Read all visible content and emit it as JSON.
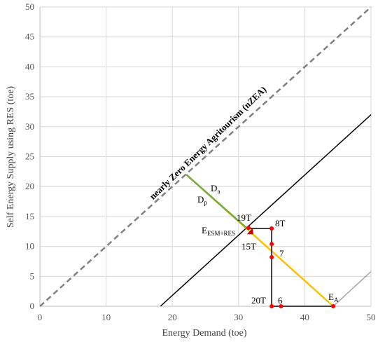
{
  "chart_data": {
    "type": "line",
    "xlabel": "Energy Demand (toe)",
    "ylabel": "Self Energy Supply using RES (toe)",
    "xlim": [
      0,
      50
    ],
    "ylim": [
      0,
      50
    ],
    "x_ticks": [
      "0",
      "10",
      "20",
      "30",
      "40",
      "50"
    ],
    "y_ticks": [
      "0",
      "5",
      "10",
      "15",
      "20",
      "25",
      "30",
      "35",
      "40",
      "45",
      "50"
    ],
    "grid": true,
    "diagonal_label": "nearly Zero Energy Agritourism (nZEA)",
    "series": [
      {
        "type": "dashed",
        "color": "#808080",
        "points": [
          [
            0,
            0
          ],
          [
            50,
            50
          ]
        ]
      },
      {
        "type": "solid",
        "color": "#000000",
        "points": [
          [
            18.2,
            0
          ],
          [
            50,
            32
          ]
        ]
      },
      {
        "type": "solid",
        "color": "#a6a6a6",
        "points": [
          [
            44.3,
            0
          ],
          [
            50,
            5.8
          ]
        ]
      },
      {
        "type": "solid",
        "color": "#ffc000",
        "points": [
          [
            22.1,
            22
          ],
          [
            44.3,
            0
          ]
        ]
      },
      {
        "type": "solid",
        "color": "#70ad47",
        "points": [
          [
            22.1,
            22
          ],
          [
            31.5,
            12.8
          ]
        ]
      },
      {
        "type": "solid",
        "color": "#000000",
        "points": [
          [
            35,
            0
          ],
          [
            35,
            13
          ],
          [
            31.5,
            13
          ]
        ]
      },
      {
        "type": "solid",
        "color": "#000000",
        "points": [
          [
            35,
            0
          ],
          [
            44.3,
            0
          ]
        ]
      }
    ],
    "points": [
      {
        "label": "19T",
        "x": 31.5,
        "y": 13.1,
        "color": "#ff0000"
      },
      {
        "label": "8T",
        "x": 35,
        "y": 13,
        "color": "#ff0000"
      },
      {
        "label": "15T",
        "x": 35,
        "y": 10.4,
        "color": "#ff0000"
      },
      {
        "label": "7",
        "x": 35,
        "y": 8.2,
        "color": "#ff0000"
      },
      {
        "label": "20T",
        "x": 35,
        "y": 0,
        "color": "#ff0000"
      },
      {
        "label": "6",
        "x": 36.4,
        "y": 0,
        "color": "#ff0000"
      },
      {
        "label": "E_A",
        "x": 44.3,
        "y": 0,
        "color": "#ff0000"
      }
    ],
    "annotations": {
      "da_main": "D",
      "da_sub": "a",
      "dp_main": "D",
      "dp_sub": "p",
      "e_esm_main": "E",
      "e_esm_sub": "ESM+RES",
      "ea_main": "E",
      "ea_sub": "A",
      "label_19t": "19T",
      "label_8t": "8T",
      "label_15t": "15T",
      "label_7": "7",
      "label_20t": "20T",
      "label_6": "6"
    }
  }
}
